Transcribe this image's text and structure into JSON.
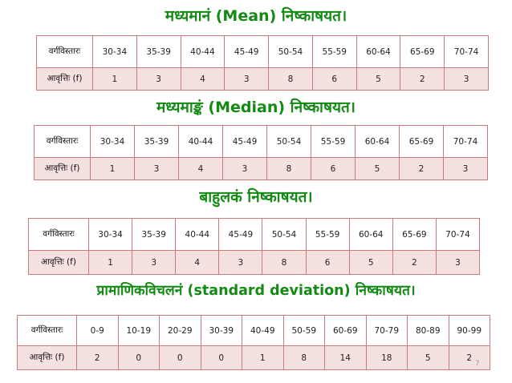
{
  "sections": [
    {
      "heading": "मध्यमानं (Mean) निष्काषयत।",
      "class_label": "वर्गविस्तारः",
      "freq_label": "आवृत्तिः (f)",
      "classes": [
        "30-34",
        "35-39",
        "40-44",
        "45-49",
        "50-54",
        "55-59",
        "60-64",
        "65-69",
        "70-74"
      ],
      "frequencies": [
        "1",
        "3",
        "4",
        "3",
        "8",
        "6",
        "5",
        "2",
        "3"
      ]
    },
    {
      "heading": "मध्यमाङ्कं (Median) निष्काषयत।",
      "class_label": "वर्गविस्तारः",
      "freq_label": "आवृत्तिः (f)",
      "classes": [
        "30-34",
        "35-39",
        "40-44",
        "45-49",
        "50-54",
        "55-59",
        "60-64",
        "65-69",
        "70-74"
      ],
      "frequencies": [
        "1",
        "3",
        "4",
        "3",
        "8",
        "6",
        "5",
        "2",
        "3"
      ]
    },
    {
      "heading": "बाहुलकं निष्काषयत।",
      "class_label": "वर्गविस्तारः",
      "freq_label": "आवृत्तिः (f)",
      "classes": [
        "30-34",
        "35-39",
        "40-44",
        "45-49",
        "50-54",
        "55-59",
        "60-64",
        "65-69",
        "70-74"
      ],
      "frequencies": [
        "1",
        "3",
        "4",
        "3",
        "8",
        "6",
        "5",
        "2",
        "3"
      ]
    },
    {
      "heading": "प्रामाणिकविचलनं (standard deviation) निष्काषयत।",
      "class_label": "वर्गविस्तारः",
      "freq_label": "आवृत्तिः (f)",
      "classes": [
        "0-9",
        "10-19",
        "20-29",
        "30-39",
        "40-49",
        "50-59",
        "60-69",
        "70-79",
        "80-89",
        "90-99"
      ],
      "frequencies": [
        "2",
        "0",
        "0",
        "0",
        "1",
        "8",
        "14",
        "18",
        "5",
        "2"
      ]
    }
  ],
  "page_number": "7",
  "colors": {
    "heading": "#138a13",
    "border": "#c97a7a",
    "freq_row": "#f6e1e1"
  }
}
